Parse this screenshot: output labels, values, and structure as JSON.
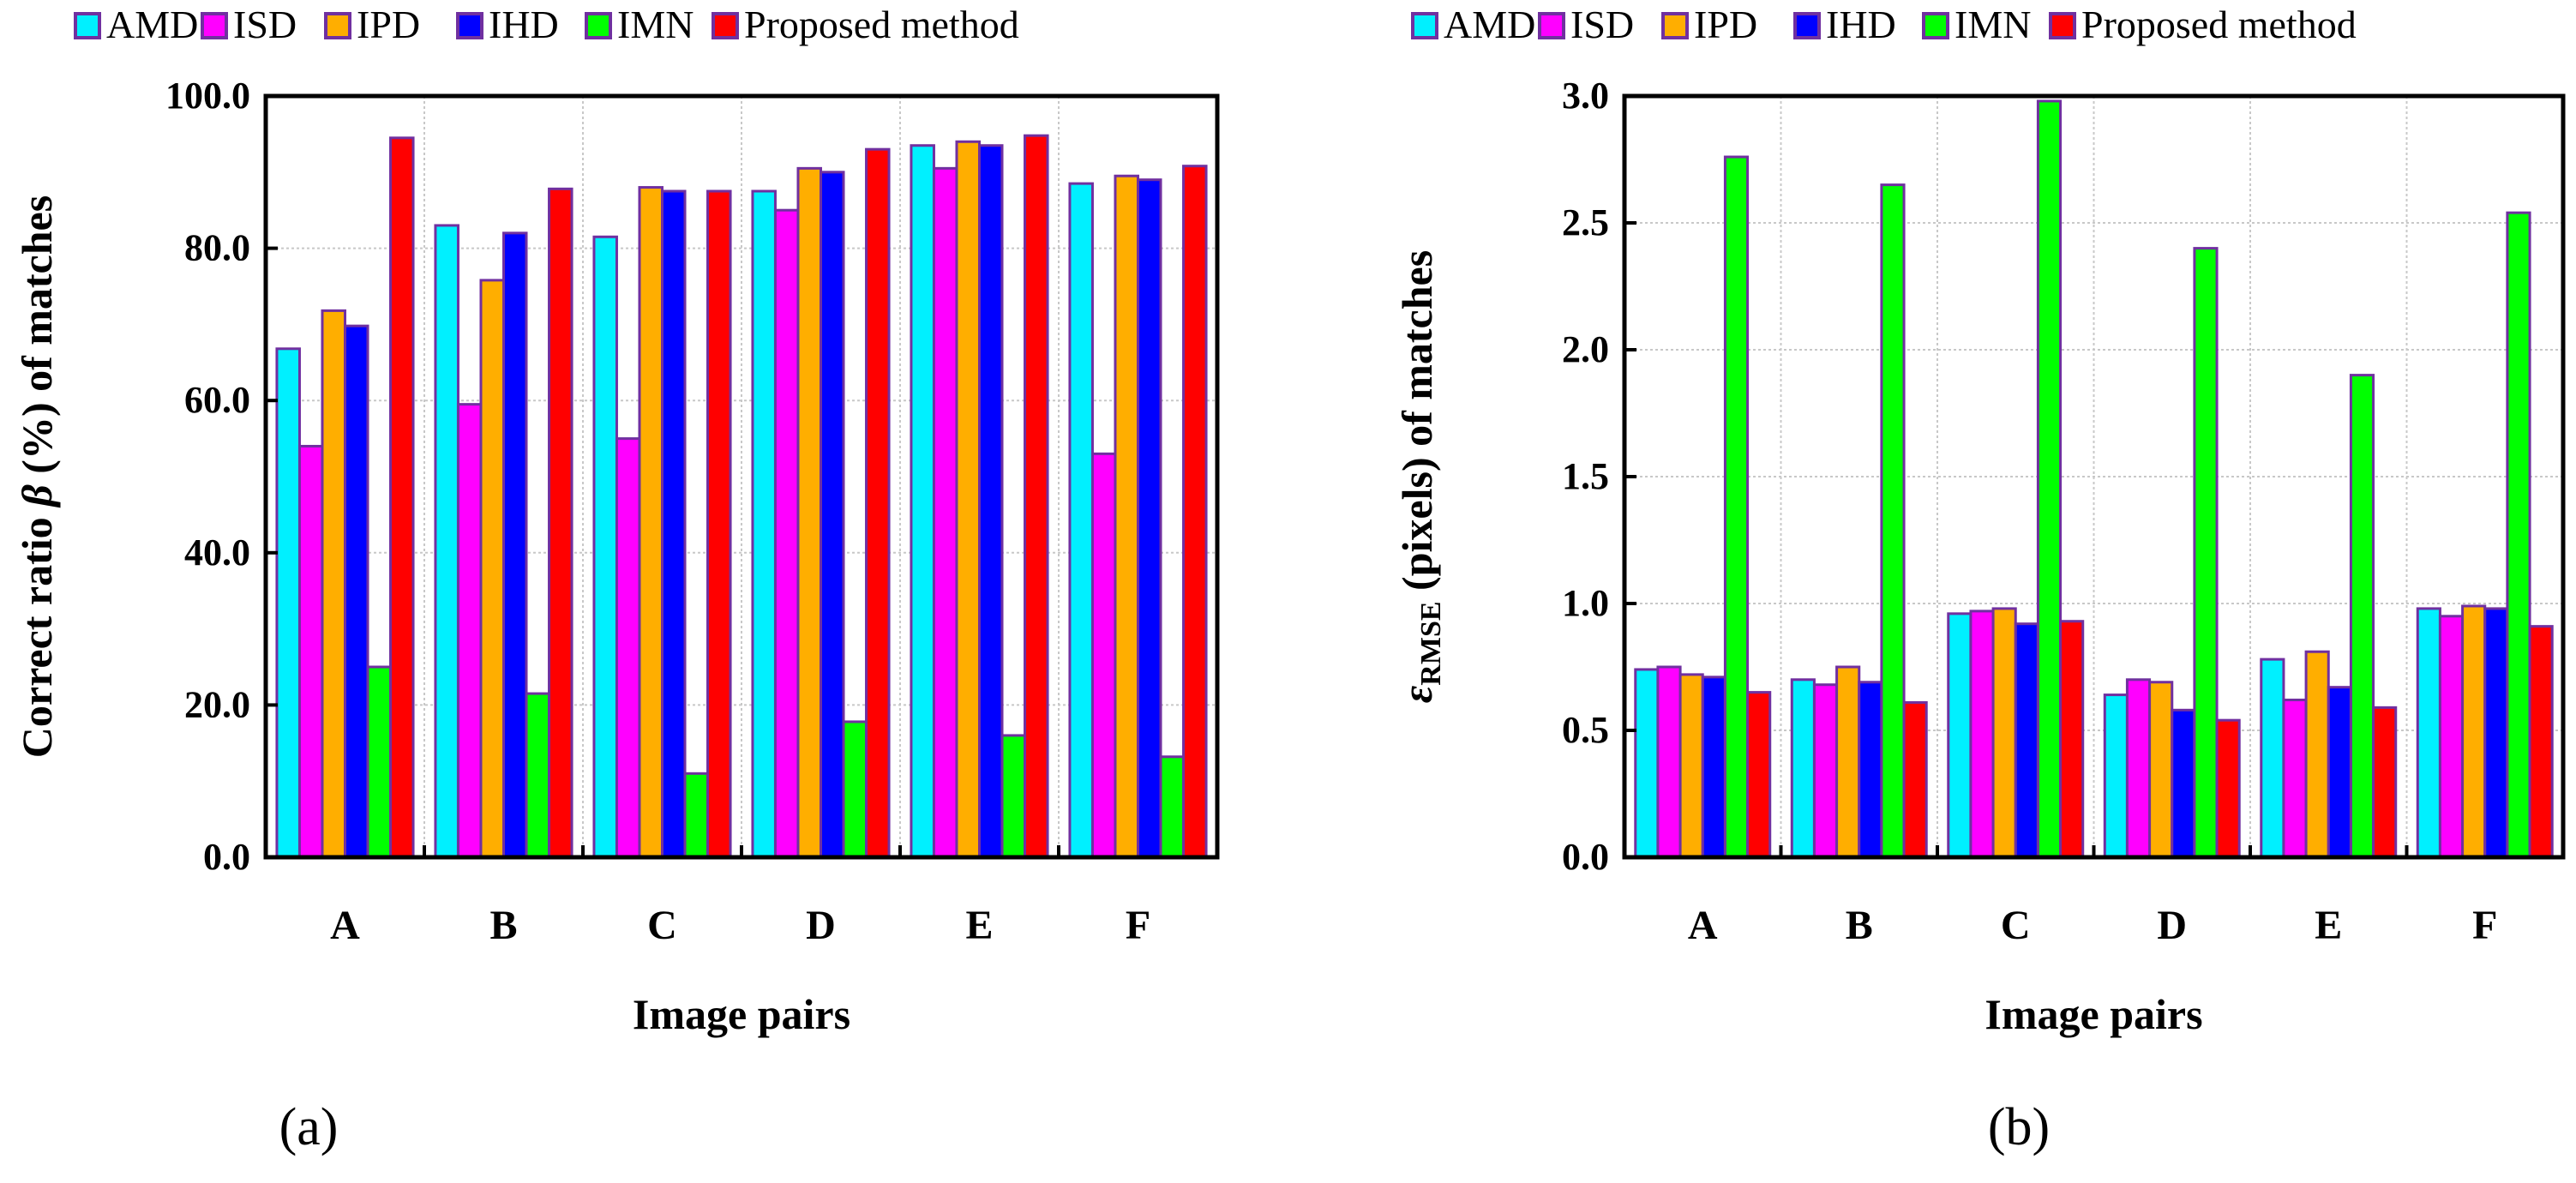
{
  "colors": {
    "AMD": "#00f0ff",
    "ISD": "#ff00ff",
    "IPD": "#ffae00",
    "IHD": "#0000ff",
    "IMN": "#00ff00",
    "Proposed method": "#ff0000",
    "bar_edge": "#7030a0"
  },
  "chart_data": [
    {
      "type": "bar",
      "panel_label": "(a)",
      "categories": [
        "A",
        "B",
        "C",
        "D",
        "E",
        "F"
      ],
      "series": [
        {
          "name": "AMD",
          "values": [
            66.8,
            83.0,
            81.5,
            87.5,
            93.5,
            88.5
          ]
        },
        {
          "name": "ISD",
          "values": [
            54.0,
            59.5,
            55.0,
            85.0,
            90.5,
            53.0
          ]
        },
        {
          "name": "IPD",
          "values": [
            71.8,
            75.8,
            88.0,
            90.5,
            94.0,
            89.5
          ]
        },
        {
          "name": "IHD",
          "values": [
            69.8,
            82.0,
            87.5,
            90.0,
            93.5,
            89.0
          ]
        },
        {
          "name": "IMN",
          "values": [
            25.0,
            21.5,
            11.0,
            17.8,
            16.0,
            13.2
          ]
        },
        {
          "name": "Proposed method",
          "values": [
            94.5,
            87.8,
            87.5,
            93.0,
            94.8,
            90.8
          ]
        }
      ],
      "ylabel_pre": "Correct ratio ",
      "ylabel_sym": "β",
      "ylabel_post": " (%) of matches",
      "xlabel": "Image pairs",
      "ylim": [
        0,
        100
      ],
      "ytick_values": [
        0,
        20,
        40,
        60,
        80,
        100
      ],
      "ytick_labels": [
        "0.0",
        "20.0",
        "40.0",
        "60.0",
        "80.0",
        "100.0"
      ]
    },
    {
      "type": "bar",
      "panel_label": "(b)",
      "categories": [
        "A",
        "B",
        "C",
        "D",
        "E",
        "F"
      ],
      "series": [
        {
          "name": "AMD",
          "values": [
            0.74,
            0.7,
            0.96,
            0.64,
            0.78,
            0.98
          ]
        },
        {
          "name": "ISD",
          "values": [
            0.75,
            0.68,
            0.97,
            0.7,
            0.62,
            0.95
          ]
        },
        {
          "name": "IPD",
          "values": [
            0.72,
            0.75,
            0.98,
            0.69,
            0.81,
            0.99
          ]
        },
        {
          "name": "IHD",
          "values": [
            0.71,
            0.69,
            0.92,
            0.58,
            0.67,
            0.98
          ]
        },
        {
          "name": "IMN",
          "values": [
            2.76,
            2.65,
            2.98,
            2.4,
            1.9,
            2.54
          ]
        },
        {
          "name": "Proposed method",
          "values": [
            0.65,
            0.61,
            0.93,
            0.54,
            0.59,
            0.91
          ]
        }
      ],
      "ylabel_sym": "ε",
      "ylabel_sub": "RMSE",
      "ylabel_post": " (pixels) of matches",
      "xlabel": "Image pairs",
      "ylim": [
        0,
        3
      ],
      "ytick_values": [
        0,
        0.5,
        1,
        1.5,
        2,
        2.5,
        3
      ],
      "ytick_labels": [
        "0.0",
        "0.5",
        "1.0",
        "1.5",
        "2.0",
        "2.5",
        "3.0"
      ]
    }
  ]
}
